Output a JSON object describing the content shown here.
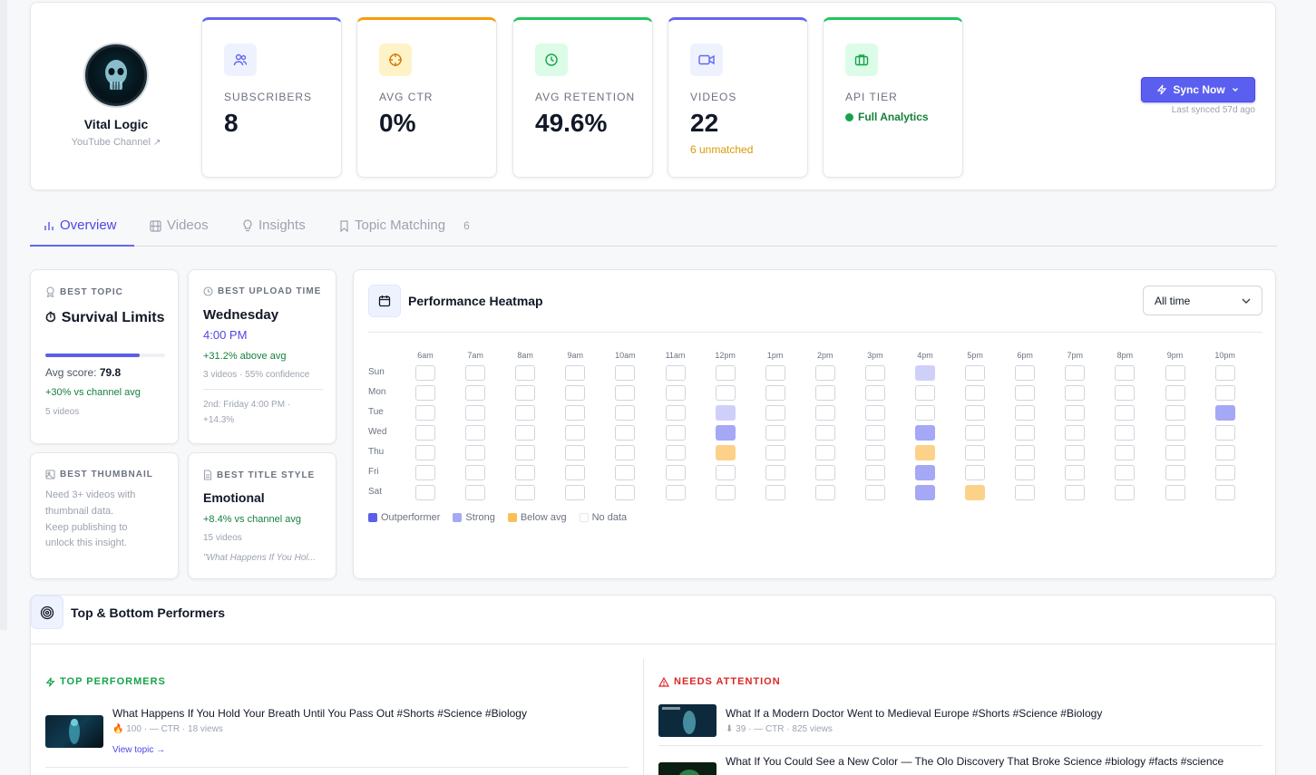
{
  "channel": {
    "name": "Vital Logic",
    "type": "YouTube Channel",
    "ext_icon": "↗"
  },
  "stats": [
    {
      "label": "SUBSCRIBERS",
      "value": "8",
      "icon": "users-icon",
      "color": "#6366f1"
    },
    {
      "label": "AVG CTR",
      "value": "0%",
      "icon": "target-icon",
      "color": "#f59e0b"
    },
    {
      "label": "AVG RETENTION",
      "value": "49.6%",
      "icon": "clock-icon",
      "color": "#22c55e"
    },
    {
      "label": "VIDEOS",
      "value": "22",
      "sub": "6 unmatched",
      "icon": "video-icon",
      "color": "#6366f1"
    },
    {
      "label": "API TIER",
      "value": "Full Analytics",
      "icon": "briefcase-icon",
      "color": "#22c55e"
    }
  ],
  "sync": {
    "label": "Sync Now",
    "last": "Last synced 57d ago"
  },
  "tabs": [
    {
      "label": "Overview"
    },
    {
      "label": "Videos"
    },
    {
      "label": "Insights"
    },
    {
      "label": "Topic Matching",
      "count": "6"
    }
  ],
  "insights": {
    "topic": {
      "head": "BEST TOPIC",
      "emoji": "⏱",
      "title": "Survival Limits",
      "score_label": "Avg score: ",
      "score": "79.8",
      "score_fill": 0.79,
      "delta": "+30% vs channel avg",
      "count": "5 videos"
    },
    "upload": {
      "head": "BEST UPLOAD TIME",
      "day": "Wednesday",
      "time": "4:00 PM",
      "delta": "+31.2% above avg",
      "conf": "3 videos · 55% confidence",
      "second_a": "2nd: Friday 4:00 PM ·",
      "second_b": "+14.3%"
    },
    "thumbnail": {
      "head": "BEST THUMBNAIL",
      "l1": "Need 3+ videos with",
      "l2": "thumbnail data.",
      "l3": "Keep publishing to",
      "l4": "unlock this insight."
    },
    "title_style": {
      "head": "BEST TITLE STYLE",
      "title": "Emotional",
      "delta": "+8.4% vs channel avg",
      "count": "15 videos",
      "example": "\"What Happens If You Hol..."
    }
  },
  "heatmap": {
    "title": "Performance Heatmap",
    "range": "All time",
    "hours": [
      "6am",
      "7am",
      "8am",
      "9am",
      "10am",
      "11am",
      "12pm",
      "1pm",
      "2pm",
      "3pm",
      "4pm",
      "5pm",
      "6pm",
      "7pm",
      "8pm",
      "9pm",
      "10pm"
    ],
    "days": [
      "Sun",
      "Mon",
      "Tue",
      "Wed",
      "Thu",
      "Fri",
      "Sat"
    ],
    "cells": [
      {
        "day": "Sun",
        "hour": "4pm",
        "level": "strong"
      },
      {
        "day": "Tue",
        "hour": "12pm",
        "level": "strong"
      },
      {
        "day": "Tue",
        "hour": "10pm",
        "level": "out"
      },
      {
        "day": "Wed",
        "hour": "12pm",
        "level": "out"
      },
      {
        "day": "Wed",
        "hour": "4pm",
        "level": "out"
      },
      {
        "day": "Thu",
        "hour": "12pm",
        "level": "below"
      },
      {
        "day": "Thu",
        "hour": "4pm",
        "level": "below"
      },
      {
        "day": "Fri",
        "hour": "4pm",
        "level": "out"
      },
      {
        "day": "Sat",
        "hour": "4pm",
        "level": "out"
      },
      {
        "day": "Sat",
        "hour": "5pm",
        "level": "below"
      }
    ],
    "legend": [
      {
        "label": "Outperformer",
        "color": "#5b5fe8"
      },
      {
        "label": "Strong",
        "color": "#a5a8f5"
      },
      {
        "label": "Below avg",
        "color": "#fbbf5a"
      },
      {
        "label": "No data",
        "color": "#ffffff"
      }
    ]
  },
  "performers": {
    "title": "Top & Bottom Performers",
    "top_head": "TOP PERFORMERS",
    "bottom_head": "NEEDS ATTENTION",
    "top": [
      {
        "title": "What Happens If You Hold Your Breath Until You Pass Out #Shorts #Science #Biology",
        "score": "100",
        "meta": " · — CTR · 18 views",
        "link": "View topic →"
      }
    ],
    "bottom": [
      {
        "title": "What If a Modern Doctor Went to Medieval Europe #Shorts #Science #Biology",
        "score": "39",
        "meta": " · — CTR · 825 views"
      },
      {
        "title": "What If You Could See a New Color — The Olo Discovery That Broke Science #biology #facts #science"
      }
    ]
  }
}
